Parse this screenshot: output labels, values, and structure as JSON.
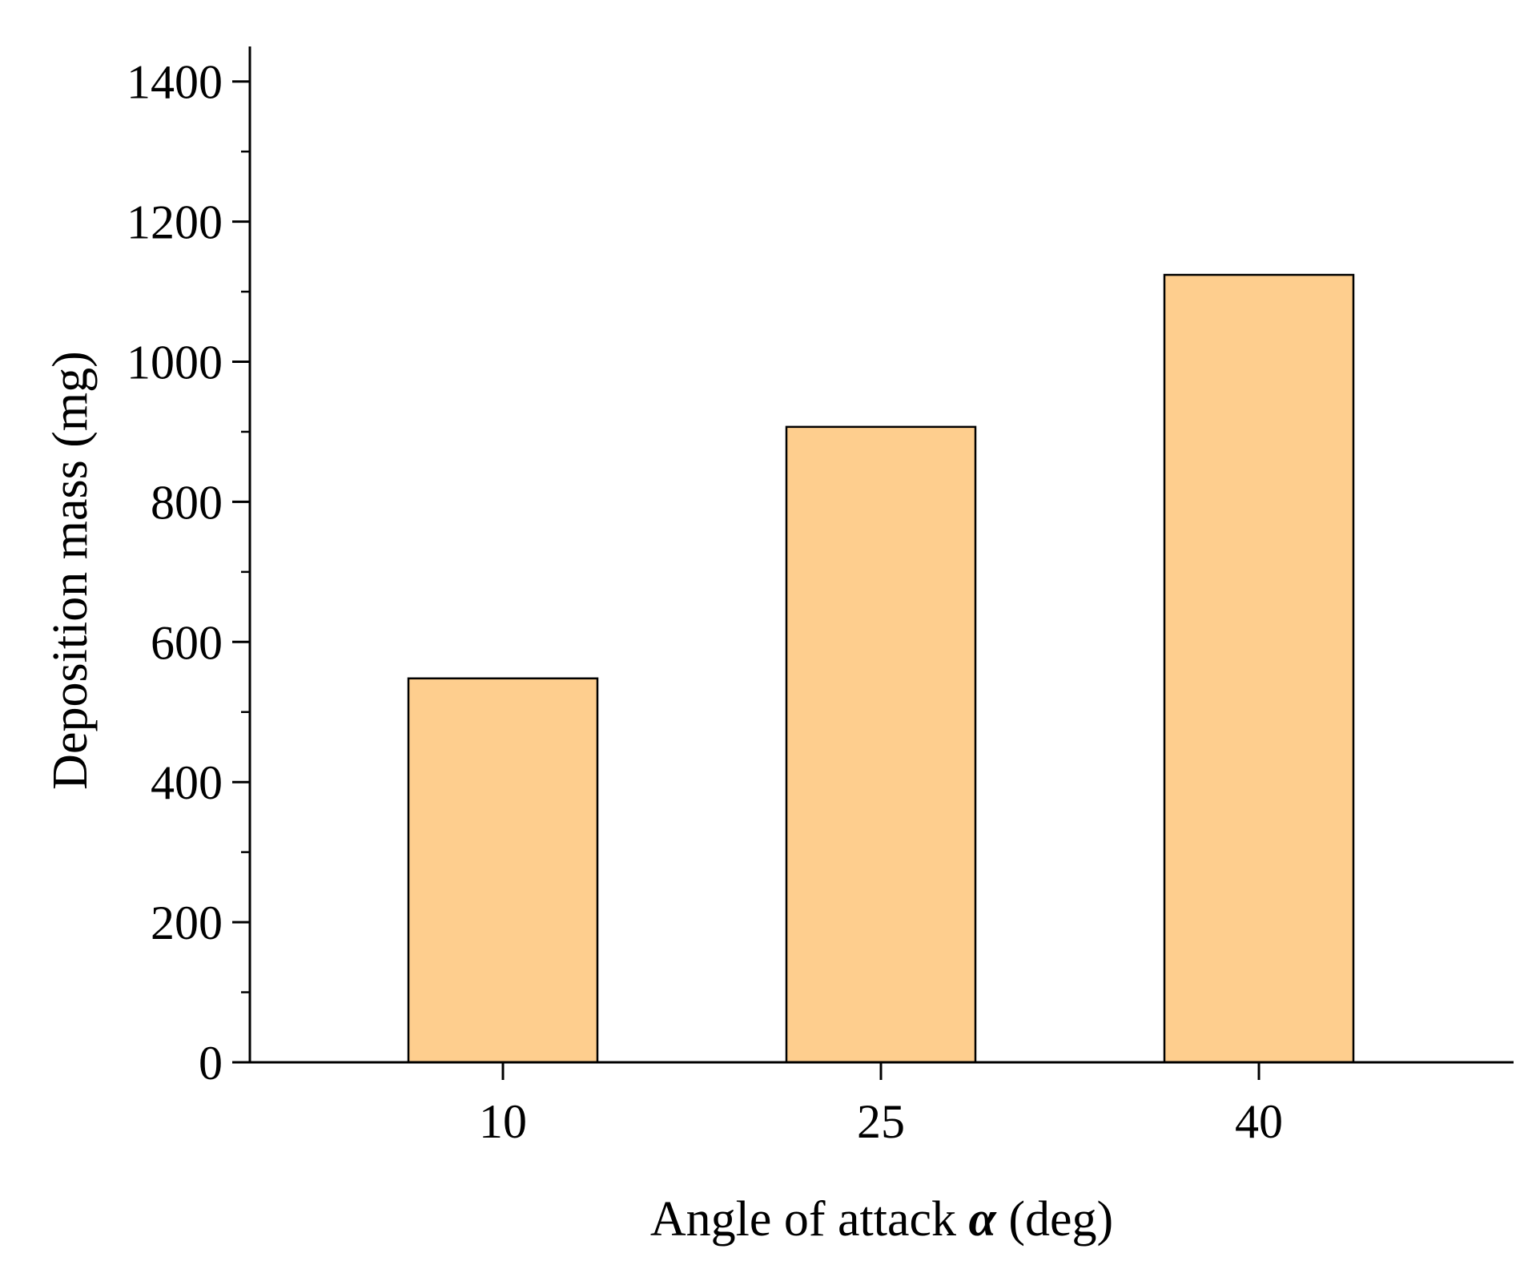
{
  "chart_data": {
    "type": "bar",
    "categories": [
      "10",
      "25",
      "40"
    ],
    "values": [
      548,
      907,
      1124
    ],
    "xlabel": "Angle of attack α (deg)",
    "xlabel_parts": {
      "before": "Angle of attack ",
      "symbol": "α",
      "after": " (deg)"
    },
    "ylabel": "Deposition mass (mg)",
    "ylim": [
      0,
      1450
    ],
    "yticks": [
      0,
      200,
      400,
      600,
      800,
      1000,
      1200,
      1400
    ],
    "ytick_labels": [
      "0",
      "200",
      "400",
      "600",
      "800",
      "1000",
      "1200",
      "1400"
    ],
    "yminor_ticks": [
      100,
      300,
      500,
      700,
      900,
      1100,
      1300
    ],
    "grid": false,
    "legend": "none",
    "bar_color": "#FECE8E",
    "bar_edge_color": "#000000"
  }
}
